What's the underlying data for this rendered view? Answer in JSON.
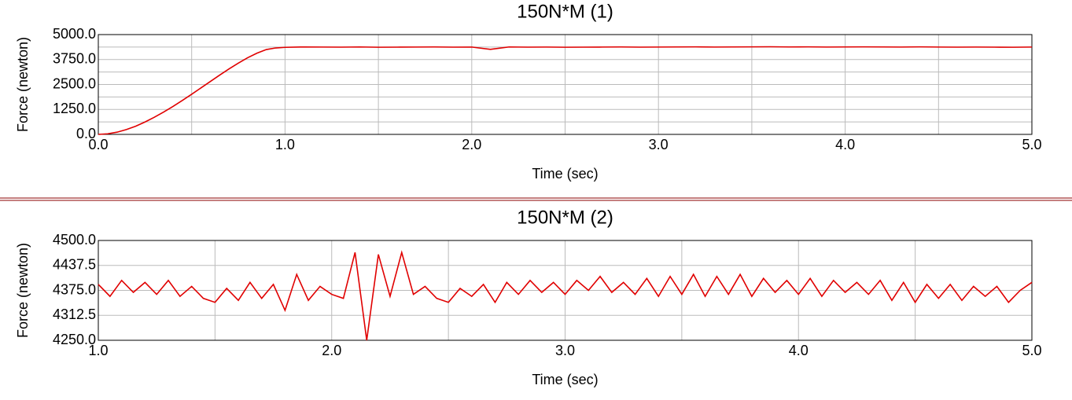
{
  "chart_data": [
    {
      "type": "line",
      "title": "150N*M  (1)",
      "x_label": "Time (sec)",
      "y_label": "Force (newton)",
      "x": [
        0,
        0.05,
        0.1,
        0.15,
        0.2,
        0.25,
        0.3,
        0.35,
        0.4,
        0.45,
        0.5,
        0.55,
        0.6,
        0.65,
        0.7,
        0.75,
        0.8,
        0.85,
        0.9,
        0.95,
        1.0,
        1.1,
        1.2,
        1.3,
        1.4,
        1.5,
        1.6,
        1.7,
        1.8,
        1.9,
        2.0,
        2.1,
        2.2,
        2.3,
        2.4,
        2.5,
        2.6,
        2.7,
        2.8,
        2.9,
        3.0,
        3.1,
        3.2,
        3.3,
        3.4,
        3.5,
        3.6,
        3.7,
        3.8,
        3.9,
        4.0,
        4.1,
        4.2,
        4.3,
        4.4,
        4.5,
        4.6,
        4.7,
        4.8,
        4.9,
        5.0
      ],
      "series": [
        {
          "color": "#e00000",
          "values": [
            0,
            30,
            110,
            240,
            410,
            620,
            860,
            1120,
            1400,
            1700,
            2010,
            2330,
            2650,
            2970,
            3280,
            3570,
            3840,
            4070,
            4250,
            4330,
            4360,
            4380,
            4375,
            4370,
            4380,
            4365,
            4370,
            4375,
            4380,
            4370,
            4375,
            4260,
            4380,
            4370,
            4375,
            4365,
            4370,
            4375,
            4380,
            4370,
            4375,
            4380,
            4385,
            4375,
            4380,
            4385,
            4390,
            4380,
            4385,
            4375,
            4380,
            4385,
            4380,
            4375,
            4385,
            4375,
            4370,
            4375,
            4370,
            4365,
            4375
          ]
        }
      ],
      "xlim": [
        0,
        5
      ],
      "ylim": [
        0,
        5000
      ],
      "xticks": [
        {
          "value": 0,
          "label": "0.0"
        },
        {
          "value": 1,
          "label": "1.0"
        },
        {
          "value": 2,
          "label": "2.0"
        },
        {
          "value": 3,
          "label": "3.0"
        },
        {
          "value": 4,
          "label": "4.0"
        },
        {
          "value": 5,
          "label": "5.0"
        }
      ],
      "x_minor_ticks": [
        0.5,
        1.5,
        2.5,
        3.5,
        4.5
      ],
      "yticks": [
        {
          "value": 0,
          "label": "0.0"
        },
        {
          "value": 1250,
          "label": "1250.0"
        },
        {
          "value": 2500,
          "label": "2500.0"
        },
        {
          "value": 3750,
          "label": "3750.0"
        },
        {
          "value": 5000,
          "label": "5000.0"
        }
      ],
      "y_minor_ticks": [
        625,
        1875,
        3125,
        4375
      ],
      "grid": true
    },
    {
      "type": "line",
      "title": "150N*M  (2)",
      "x_label": "Time (sec)",
      "y_label": "Force (newton)",
      "x": [
        1.0,
        1.05,
        1.1,
        1.15,
        1.2,
        1.25,
        1.3,
        1.35,
        1.4,
        1.45,
        1.5,
        1.55,
        1.6,
        1.65,
        1.7,
        1.75,
        1.8,
        1.85,
        1.9,
        1.95,
        2.0,
        2.05,
        2.1,
        2.15,
        2.2,
        2.25,
        2.3,
        2.35,
        2.4,
        2.45,
        2.5,
        2.55,
        2.6,
        2.65,
        2.7,
        2.75,
        2.8,
        2.85,
        2.9,
        2.95,
        3.0,
        3.05,
        3.1,
        3.15,
        3.2,
        3.25,
        3.3,
        3.35,
        3.4,
        3.45,
        3.5,
        3.55,
        3.6,
        3.65,
        3.7,
        3.75,
        3.8,
        3.85,
        3.9,
        3.95,
        4.0,
        4.05,
        4.1,
        4.15,
        4.2,
        4.25,
        4.3,
        4.35,
        4.4,
        4.45,
        4.5,
        4.55,
        4.6,
        4.65,
        4.7,
        4.75,
        4.8,
        4.85,
        4.9,
        4.95,
        5.0
      ],
      "series": [
        {
          "color": "#e00000",
          "values": [
            4390,
            4360,
            4400,
            4370,
            4395,
            4365,
            4400,
            4360,
            4385,
            4355,
            4345,
            4380,
            4350,
            4395,
            4355,
            4390,
            4325,
            4415,
            4350,
            4385,
            4365,
            4355,
            4470,
            4250,
            4465,
            4360,
            4470,
            4365,
            4385,
            4355,
            4345,
            4380,
            4360,
            4390,
            4345,
            4395,
            4365,
            4400,
            4370,
            4395,
            4365,
            4400,
            4375,
            4410,
            4370,
            4395,
            4365,
            4405,
            4360,
            4410,
            4365,
            4415,
            4360,
            4410,
            4365,
            4415,
            4360,
            4405,
            4370,
            4400,
            4365,
            4405,
            4360,
            4400,
            4370,
            4395,
            4365,
            4400,
            4350,
            4395,
            4345,
            4390,
            4355,
            4390,
            4350,
            4385,
            4360,
            4385,
            4345,
            4375,
            4395
          ]
        }
      ],
      "xlim": [
        1,
        5
      ],
      "ylim": [
        4250,
        4500
      ],
      "xticks": [
        {
          "value": 1,
          "label": "1.0"
        },
        {
          "value": 2,
          "label": "2.0"
        },
        {
          "value": 3,
          "label": "3.0"
        },
        {
          "value": 4,
          "label": "4.0"
        },
        {
          "value": 5,
          "label": "5.0"
        }
      ],
      "x_minor_ticks": [
        1.5,
        2.5,
        3.5,
        4.5
      ],
      "yticks": [
        {
          "value": 4250,
          "label": "4250.0"
        },
        4312.5,
        {
          "value": 4375,
          "label": "4375.0"
        },
        4437.5,
        {
          "value": 4500,
          "label": "4500.0"
        }
      ],
      "y_minor_ticks": [],
      "grid": true
    }
  ]
}
